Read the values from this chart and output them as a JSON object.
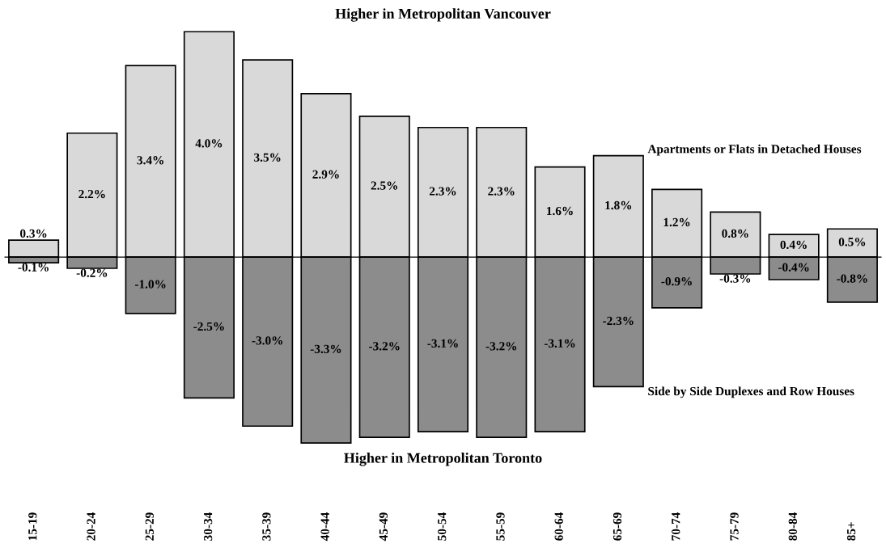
{
  "chart_data": {
    "type": "bar",
    "stacked": true,
    "legend": false,
    "categories": [
      "15-19",
      "20-24",
      "25-29",
      "30-34",
      "35-39",
      "40-44",
      "45-49",
      "50-54",
      "55-59",
      "60-64",
      "65-69",
      "70-74",
      "75-79",
      "80-84",
      "85+"
    ],
    "series": [
      {
        "name": "Apartments or Flats in Detached Houses",
        "color": "#d9d9d9",
        "values": [
          0.3,
          2.2,
          3.4,
          4.0,
          3.5,
          2.9,
          2.5,
          2.3,
          2.3,
          1.6,
          1.8,
          1.2,
          0.8,
          0.4,
          0.5
        ],
        "value_labels": [
          "0.3%",
          "2.2%",
          "3.4%",
          "4.0%",
          "3.5%",
          "2.9%",
          "2.5%",
          "2.3%",
          "2.3%",
          "1.6%",
          "1.8%",
          "1.2%",
          "0.8%",
          "0.4%",
          "0.5%"
        ]
      },
      {
        "name": "Side by Side Duplexes and Row Houses",
        "color": "#8c8c8c",
        "values": [
          -0.1,
          -0.2,
          -1.0,
          -2.5,
          -3.0,
          -3.3,
          -3.2,
          -3.1,
          -3.2,
          -3.1,
          -2.3,
          -0.9,
          -0.3,
          -0.4,
          -0.8
        ],
        "value_labels": [
          "-0.1%",
          "-0.2%",
          "-1.0%",
          "-2.5%",
          "-3.0%",
          "-3.3%",
          "-3.2%",
          "-3.1%",
          "-3.2%",
          "-3.1%",
          "-2.3%",
          "-0.9%",
          "-0.3%",
          "-0.4%",
          "-0.8%"
        ]
      }
    ],
    "annotations": [
      "Higher in Metropolitan Vancouver",
      "Higher in Metropolitan Toronto"
    ]
  }
}
